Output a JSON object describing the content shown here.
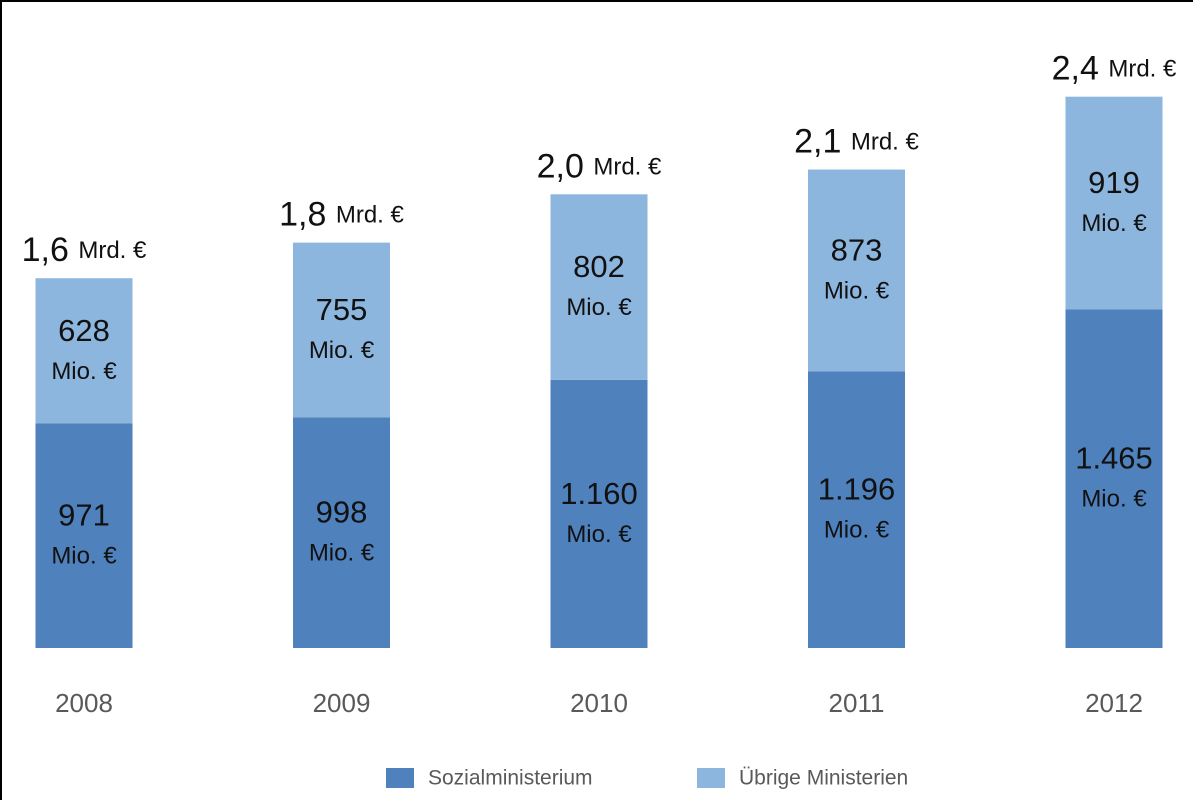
{
  "chart_data": {
    "type": "stacked_bar",
    "categories": [
      "2008",
      "2009",
      "2010",
      "2011",
      "2012"
    ],
    "series": [
      {
        "name": "Sozialministerium",
        "color": "#4f81bd",
        "values": [
          971,
          998,
          1160,
          1196,
          1465
        ],
        "value_labels": [
          "971 Mio. €",
          "998 Mio. €",
          "1.160 Mio. €",
          "1.196 Mio. €",
          "1.465 Mio. €"
        ]
      },
      {
        "name": "Übrige Ministerien",
        "color": "#8db6de",
        "values": [
          628,
          755,
          802,
          873,
          919
        ],
        "value_labels": [
          "628 Mio. €",
          "755 Mio. €",
          "802 Mio. €",
          "873 Mio. €",
          "919 Mio. €"
        ]
      }
    ],
    "annotations": [
      "1,6 Mrd. €",
      "1,8 Mrd. €",
      "2,0 Mrd. €",
      "2,1 Mrd. €",
      "2,4 Mrd. €"
    ],
    "ylim": [
      0,
      2400
    ]
  }
}
